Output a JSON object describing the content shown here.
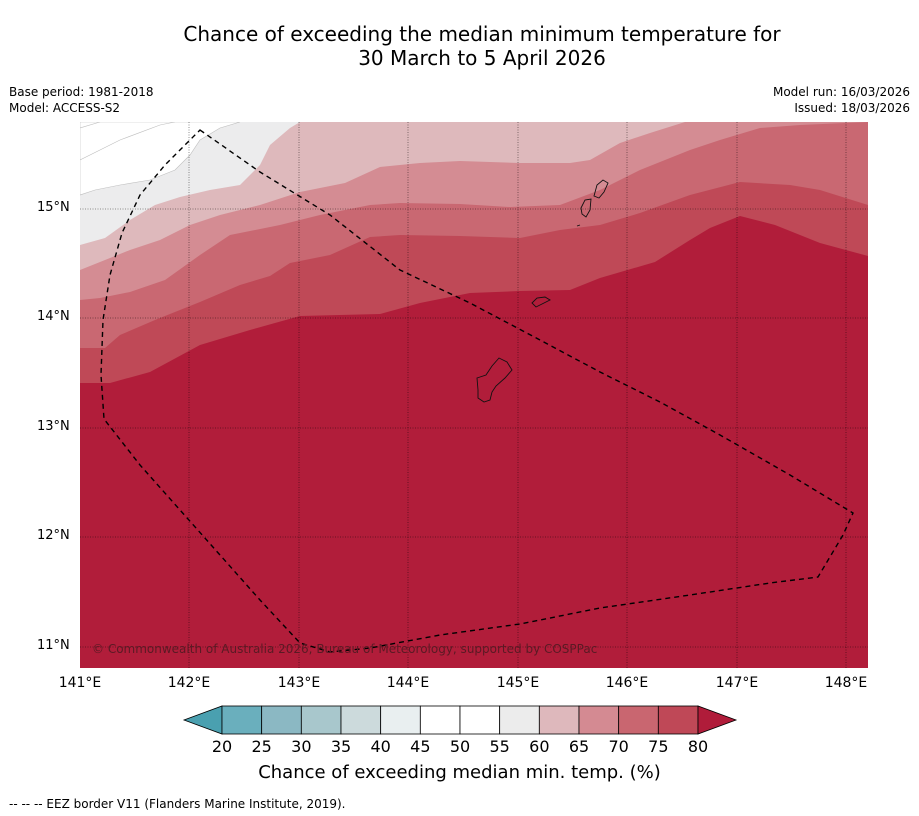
{
  "title_line1": "Chance of exceeding the median minimum temperature for",
  "title_line2": "30 March to 5 April 2026",
  "base_period": "Base period: 1981-2018",
  "model": "Model: ACCESS-S2",
  "model_run": "Model run: 16/03/2026",
  "issued": "Issued: 18/03/2026",
  "copyright": "© Commonwealth of Australia 2026, Bureau of Meteorology, supported by COSPPac",
  "lat_labels": [
    "15°N",
    "14°N",
    "13°N",
    "12°N",
    "11°N"
  ],
  "lon_labels": [
    "141°E",
    "142°E",
    "143°E",
    "144°E",
    "145°E",
    "146°E",
    "147°E",
    "148°E"
  ],
  "colorbar": {
    "ticks": [
      "20",
      "25",
      "30",
      "35",
      "40",
      "45",
      "50",
      "55",
      "60",
      "65",
      "70",
      "75",
      "80"
    ],
    "label": "Chance of exceeding median min. temp. (%)",
    "colors": [
      "#4aa0b0",
      "#6aafbd",
      "#8bb8c3",
      "#a8c7cc",
      "#ccdadc",
      "#e9eff0",
      "#ffffff",
      "#ffffff",
      "#ececec",
      "#deb8bc",
      "#d48a92",
      "#c96670",
      "#bf4857",
      "#b01c3a"
    ]
  },
  "legend_text": "--  --  -- EEZ border V11 (Flanders Marine Institute, 2019).",
  "band_colors": [
    "#ffffff",
    "#ececed",
    "#deb9bc",
    "#d48c93",
    "#c96872",
    "#bf4957",
    "#b11d3a"
  ]
}
